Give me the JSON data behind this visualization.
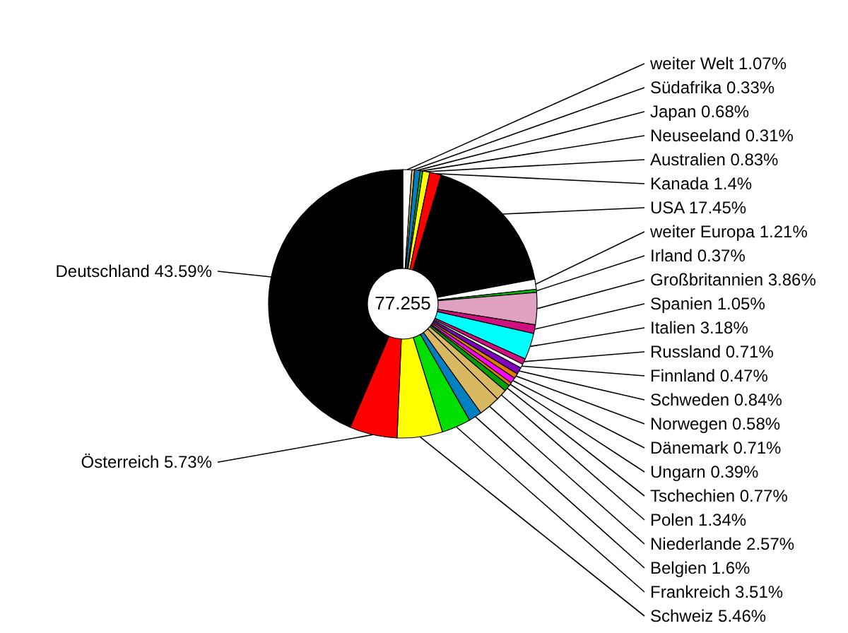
{
  "chart_data": {
    "type": "donut",
    "categories": [
      "weiter Welt",
      "Südafrika",
      "Japan",
      "Neuseeland",
      "Australien",
      "Kanada",
      "USA",
      "weiter Europa",
      "Irland",
      "Großbritannien",
      "Spanien",
      "Italien",
      "Russland",
      "Finnland",
      "Schweden",
      "Norwegen",
      "Dänemark",
      "Ungarn",
      "Tschechien",
      "Polen",
      "Niederlande",
      "Belgien",
      "Frankreich",
      "Schweiz",
      "Österreich",
      "Deutschland"
    ],
    "values": [
      1.07,
      0.33,
      0.68,
      0.31,
      0.83,
      1.4,
      17.45,
      1.21,
      0.37,
      3.86,
      1.05,
      3.18,
      0.71,
      0.47,
      0.84,
      0.58,
      0.71,
      0.39,
      0.77,
      1.34,
      2.57,
      1.6,
      3.51,
      5.46,
      5.73,
      43.59
    ],
    "colors": [
      "#ffffff",
      "#d8b860",
      "#0080c0",
      "#00c000",
      "#ffff00",
      "#ff0000",
      "#000000",
      "#ffffff",
      "#00c000",
      "#e0a0c0",
      "#d01080",
      "#00ffff",
      "#d01080",
      "#ffffff",
      "#8000c0",
      "#e08000",
      "#ff00ff",
      "#e08000",
      "#00a000",
      "#d8b860",
      "#d8b860",
      "#0080c0",
      "#00e000",
      "#ffff00",
      "#ff0000",
      "#000000"
    ],
    "value_labels": [
      "1.07%",
      "0.33%",
      "0.68%",
      "0.31%",
      "0.83%",
      "1.4%",
      "17.45%",
      "1.21%",
      "0.37%",
      "3.86%",
      "1.05%",
      "3.18%",
      "0.71%",
      "0.47%",
      "0.84%",
      "0.58%",
      "0.71%",
      "0.39%",
      "0.77%",
      "1.34%",
      "2.57%",
      "1.6%",
      "3.51%",
      "5.46%",
      "5.73%",
      "43.59%"
    ],
    "annotations": [
      "77.255"
    ]
  }
}
